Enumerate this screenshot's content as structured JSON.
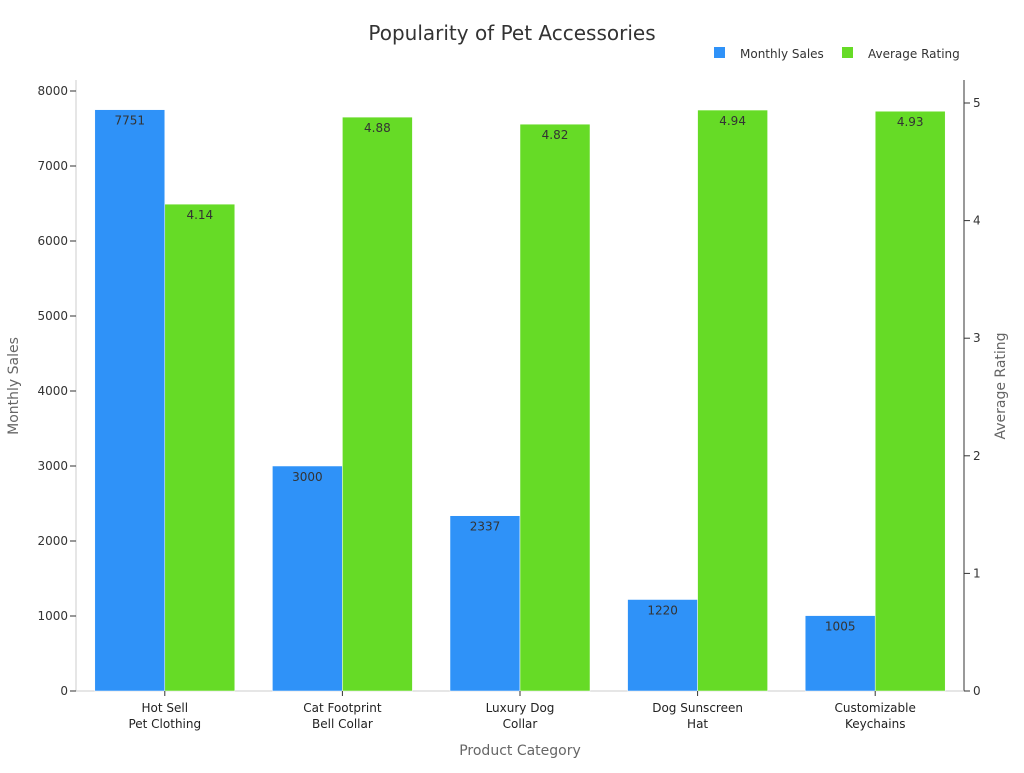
{
  "chart_data": {
    "type": "bar",
    "title": "Popularity of Pet Accessories",
    "xlabel": "Product Category",
    "ylabel": "Monthly Sales",
    "y2label": "Average Rating",
    "categories": [
      [
        "Hot Sell",
        "Pet Clothing"
      ],
      [
        "Cat Footprint",
        "Bell Collar"
      ],
      [
        "Luxury Dog",
        "Collar"
      ],
      [
        "Dog Sunscreen",
        "Hat"
      ],
      [
        "Customizable",
        "Keychains"
      ]
    ],
    "series": [
      {
        "name": "Monthly Sales",
        "axis": "left",
        "color": "#2f92f8",
        "values": [
          7751,
          3000,
          2337,
          1220,
          1005
        ],
        "labels": [
          "7751",
          "3000",
          "2337",
          "1220",
          "1005"
        ]
      },
      {
        "name": "Average Rating",
        "axis": "right",
        "color": "#66db26",
        "values": [
          4.14,
          4.88,
          4.82,
          4.94,
          4.93
        ],
        "labels": [
          "4.14",
          "4.88",
          "4.82",
          "4.94",
          "4.93"
        ]
      }
    ],
    "ylim": [
      0,
      8000
    ],
    "yticks": [
      "0",
      "1000",
      "2000",
      "3000",
      "4000",
      "5000",
      "6000",
      "7000",
      "8000"
    ],
    "y2lim": [
      0,
      5
    ],
    "y2ticks": [
      "0",
      "1",
      "2",
      "3",
      "4",
      "5"
    ],
    "grid": false,
    "legend": "top-right"
  }
}
